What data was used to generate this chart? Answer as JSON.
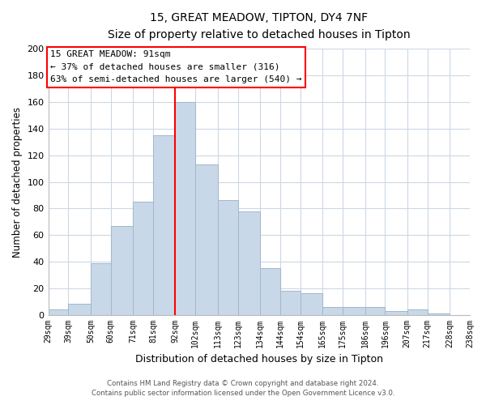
{
  "title": "15, GREAT MEADOW, TIPTON, DY4 7NF",
  "subtitle": "Size of property relative to detached houses in Tipton",
  "xlabel": "Distribution of detached houses by size in Tipton",
  "ylabel": "Number of detached properties",
  "bar_color": "#c8d8e8",
  "bar_edge_color": "#a0b8cc",
  "vline_x": 92,
  "vline_color": "red",
  "annotation_title": "15 GREAT MEADOW: 91sqm",
  "annotation_line1": "← 37% of detached houses are smaller (316)",
  "annotation_line2": "63% of semi-detached houses are larger (540) →",
  "annotation_box_edge": "red",
  "bins_left": [
    29,
    39,
    50,
    60,
    71,
    81,
    92,
    102,
    113,
    123,
    134,
    144,
    154,
    165,
    175,
    186,
    196,
    207,
    217,
    228
  ],
  "bin_width": [
    10,
    11,
    10,
    11,
    10,
    11,
    10,
    11,
    10,
    11,
    10,
    10,
    11,
    10,
    11,
    10,
    11,
    10,
    11,
    10
  ],
  "heights": [
    4,
    8,
    39,
    67,
    85,
    135,
    160,
    113,
    86,
    78,
    35,
    18,
    16,
    6,
    6,
    6,
    3,
    4,
    1,
    0
  ],
  "xlabels": [
    "29sqm",
    "39sqm",
    "50sqm",
    "60sqm",
    "71sqm",
    "81sqm",
    "92sqm",
    "102sqm",
    "113sqm",
    "123sqm",
    "134sqm",
    "144sqm",
    "154sqm",
    "165sqm",
    "175sqm",
    "186sqm",
    "196sqm",
    "207sqm",
    "217sqm",
    "228sqm",
    "238sqm"
  ],
  "ylim": [
    0,
    200
  ],
  "yticks": [
    0,
    20,
    40,
    60,
    80,
    100,
    120,
    140,
    160,
    180,
    200
  ],
  "footer1": "Contains HM Land Registry data © Crown copyright and database right 2024.",
  "footer2": "Contains public sector information licensed under the Open Government Licence v3.0.",
  "background_color": "#ffffff",
  "grid_color": "#ccd8e4"
}
